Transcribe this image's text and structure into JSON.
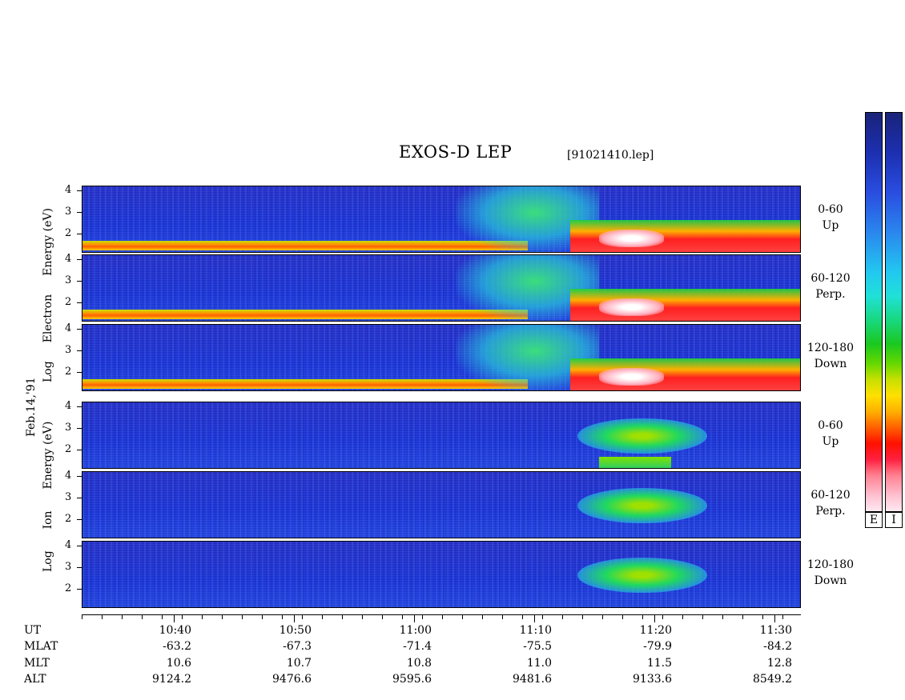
{
  "title": "EXOS-D LEP",
  "filename": "[91021410.lep]",
  "date_label": "Feb.14,'91",
  "electron_axis_label": [
    "Log",
    "Electron",
    "Energy",
    "(eV)"
  ],
  "ion_axis_label": [
    "Log",
    "Ion",
    "Energy",
    "(eV)"
  ],
  "panels": [
    {
      "group": "electron",
      "pitch": "0-60",
      "dir": "Up"
    },
    {
      "group": "electron",
      "pitch": "60-120",
      "dir": "Perp."
    },
    {
      "group": "electron",
      "pitch": "120-180",
      "dir": "Down"
    },
    {
      "group": "ion",
      "pitch": "0-60",
      "dir": "Up"
    },
    {
      "group": "ion",
      "pitch": "60-120",
      "dir": "Perp."
    },
    {
      "group": "ion",
      "pitch": "120-180",
      "dir": "Down"
    }
  ],
  "colorbar_labels": [
    "E",
    "I"
  ],
  "row_labels": [
    "UT",
    "MLAT",
    "MLT",
    "ALT"
  ],
  "chart_data": {
    "type": "heatmap",
    "title": "EXOS-D LEP",
    "y_ticks": [
      4,
      3,
      2
    ],
    "ylabel_electron": "Log Electron Energy (eV)",
    "ylabel_ion": "Log Ion Energy (eV)",
    "time_axis": [
      {
        "UT": "10:40",
        "MLAT": "-63.2",
        "MLT": "10.6",
        "ALT": "9124.2"
      },
      {
        "UT": "10:50",
        "MLAT": "-67.3",
        "MLT": "10.7",
        "ALT": "9476.6"
      },
      {
        "UT": "11:00",
        "MLAT": "-71.4",
        "MLT": "10.8",
        "ALT": "9595.6"
      },
      {
        "UT": "11:10",
        "MLAT": "-75.5",
        "MLT": "11.0",
        "ALT": "9481.6"
      },
      {
        "UT": "11:20",
        "MLAT": "-79.9",
        "MLT": "11.5",
        "ALT": "9133.6"
      },
      {
        "UT": "11:30",
        "MLAT": "-84.2",
        "MLT": "12.8",
        "ALT": "8549.2"
      }
    ]
  }
}
